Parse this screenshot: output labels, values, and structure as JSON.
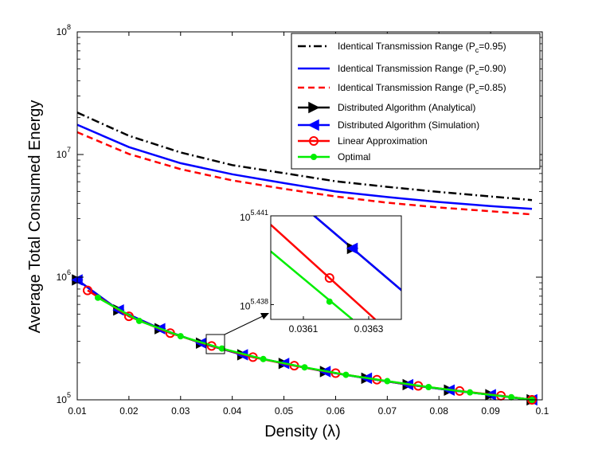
{
  "chart_data": {
    "type": "line",
    "yscale": "log",
    "xlabel": "Density (λ)",
    "ylabel": "Average Total Consumed Energy",
    "xlim": [
      0.01,
      0.1
    ],
    "ylim_log10": [
      5,
      8
    ],
    "xticks": [
      "0.01",
      "0.02",
      "0.03",
      "0.04",
      "0.05",
      "0.06",
      "0.07",
      "0.08",
      "0.09",
      "0.1"
    ],
    "yticks": [
      {
        "base": "10",
        "exp": "5",
        "value": 5
      },
      {
        "base": "10",
        "exp": "6",
        "value": 6
      },
      {
        "base": "10",
        "exp": "7",
        "value": 7
      },
      {
        "base": "10",
        "exp": "8",
        "value": 8
      }
    ],
    "legend_position": "top-right",
    "legend": [
      {
        "key": "pc95",
        "label": "Identical Transmission Range (P",
        "sub": "c",
        "suffix": "=0.95)"
      },
      {
        "key": "pc90",
        "label": "Identical Transmission Range (P",
        "sub": "c",
        "suffix": "=0.90)"
      },
      {
        "key": "pc85",
        "label": "Identical Transmission Range (P",
        "sub": "c",
        "suffix": "=0.85)"
      },
      {
        "key": "analytical",
        "label": "Distributed Algorithm (Analytical)",
        "sub": "",
        "suffix": ""
      },
      {
        "key": "simulation",
        "label": "Distributed Algorithm (Simulation)",
        "sub": "",
        "suffix": ""
      },
      {
        "key": "linear",
        "label": "Linear Approximation",
        "sub": "",
        "suffix": ""
      },
      {
        "key": "optimal",
        "label": "Optimal",
        "sub": "",
        "suffix": ""
      }
    ],
    "series": [
      {
        "key": "pc95",
        "color": "#000000",
        "dash": "10 4 2 4",
        "marker": "none",
        "width": 2.5,
        "x": [
          0.01,
          0.02,
          0.03,
          0.04,
          0.05,
          0.06,
          0.07,
          0.08,
          0.09,
          0.098
        ],
        "y": [
          22000000,
          14200000,
          10400000,
          8200000,
          7050000,
          6050000,
          5450000,
          4950000,
          4550000,
          4250000
        ]
      },
      {
        "key": "pc90",
        "color": "#0000ff",
        "dash": "",
        "marker": "none",
        "width": 2.5,
        "x": [
          0.01,
          0.02,
          0.03,
          0.04,
          0.05,
          0.06,
          0.07,
          0.08,
          0.09,
          0.098
        ],
        "y": [
          17500000,
          11500000,
          8500000,
          6900000,
          5850000,
          5000000,
          4500000,
          4100000,
          3800000,
          3600000
        ]
      },
      {
        "key": "pc85",
        "color": "#ff0000",
        "dash": "8 5",
        "marker": "none",
        "width": 2.5,
        "x": [
          0.01,
          0.02,
          0.03,
          0.04,
          0.05,
          0.06,
          0.07,
          0.08,
          0.09,
          0.098
        ],
        "y": [
          15200000,
          10100000,
          7600000,
          6150000,
          5250000,
          4550000,
          4050000,
          3700000,
          3450000,
          3250000
        ]
      },
      {
        "key": "analytical",
        "color": "#000000",
        "dash": "",
        "marker": "tri-right",
        "width": 2.5,
        "x": [
          0.01,
          0.018,
          0.026,
          0.034,
          0.042,
          0.05,
          0.058,
          0.066,
          0.074,
          0.082,
          0.09,
          0.098
        ],
        "y": [
          950000,
          540000,
          380000,
          290000,
          233000,
          198000,
          170000,
          150000,
          133000,
          120000,
          110000,
          100000
        ]
      },
      {
        "key": "simulation",
        "color": "#0000ff",
        "dash": "",
        "marker": "tri-left",
        "width": 2.5,
        "x": [
          0.01,
          0.018,
          0.026,
          0.034,
          0.042,
          0.05,
          0.058,
          0.066,
          0.074,
          0.082,
          0.09,
          0.098
        ],
        "y": [
          950000,
          540000,
          380000,
          290000,
          233000,
          198000,
          170000,
          150000,
          133000,
          120000,
          110000,
          100000
        ]
      },
      {
        "key": "linear",
        "color": "#ff0000",
        "dash": "",
        "marker": "circle",
        "width": 2.5,
        "x": [
          0.012,
          0.02,
          0.028,
          0.036,
          0.044,
          0.052,
          0.06,
          0.068,
          0.076,
          0.084,
          0.092,
          0.098
        ],
        "y": [
          780000,
          480000,
          350000,
          275000,
          223000,
          190000,
          165000,
          146000,
          130000,
          118000,
          108000,
          100000
        ]
      },
      {
        "key": "optimal",
        "color": "#00ee00",
        "dash": "",
        "marker": "dot",
        "width": 2.5,
        "x": [
          0.014,
          0.022,
          0.03,
          0.038,
          0.046,
          0.054,
          0.062,
          0.07,
          0.078,
          0.086,
          0.094,
          0.098
        ],
        "y": [
          680000,
          440000,
          330000,
          262000,
          215000,
          184000,
          160000,
          142000,
          127000,
          115000,
          105000,
          100000
        ]
      }
    ],
    "inset": {
      "xlim": [
        0.036,
        0.0364
      ],
      "ylim_log10": [
        5.4375,
        5.441
      ],
      "xticks": [
        "0.0361",
        "0.0363"
      ],
      "yticks": [
        {
          "base": "10",
          "exp": "5.441",
          "value": 5.441
        },
        {
          "base": "10",
          "exp": "5.438",
          "value": 5.438
        }
      ],
      "series": [
        {
          "key": "analytical",
          "color": "#000000",
          "x": [
            0.03608,
            0.03642
          ],
          "y_log10": [
            5.4415,
            5.4383
          ],
          "marker_x": 0.03625,
          "marker_y_log10": 5.4399
        },
        {
          "key": "simulation",
          "color": "#0000ff",
          "x": [
            0.03608,
            0.03642
          ],
          "y_log10": [
            5.4415,
            5.4383
          ],
          "marker_x": 0.03625,
          "marker_y_log10": 5.4399
        },
        {
          "key": "linear",
          "color": "#ff0000",
          "x": [
            0.036,
            0.03632
          ],
          "y_log10": [
            5.4407,
            5.4375
          ],
          "marker_x": 0.03618,
          "marker_y_log10": 5.4389
        },
        {
          "key": "optimal",
          "color": "#00ee00",
          "x": [
            0.036,
            0.03625
          ],
          "y_log10": [
            5.4398,
            5.4375
          ],
          "marker_x": 0.03618,
          "marker_y_log10": 5.4381
        }
      ]
    }
  }
}
